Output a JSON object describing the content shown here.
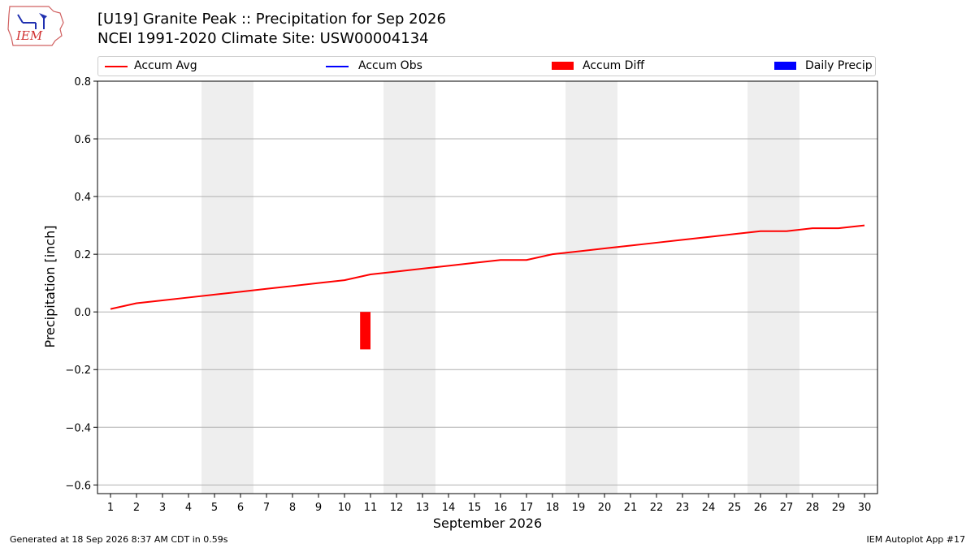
{
  "page": {
    "title_line1": "[U19] Granite Peak :: Precipitation for Sep 2026",
    "title_line2": "NCEI 1991-2020 Climate Site: USW00004134",
    "footer_left": "Generated at 18 Sep 2026 8:37 AM CDT in 0.59s",
    "footer_right": "IEM Autoplot App #17",
    "logo_text": "IEM"
  },
  "legend": {
    "placement": "top",
    "items": [
      {
        "label": "Accum Avg",
        "kind": "line",
        "color": "#ff0000"
      },
      {
        "label": "Accum Obs",
        "kind": "line",
        "color": "#0000ff"
      },
      {
        "label": "Accum Diff",
        "kind": "bar",
        "color": "#ff0000"
      },
      {
        "label": "Daily Precip",
        "kind": "bar",
        "color": "#0000ff"
      }
    ]
  },
  "chart_data": {
    "type": "line",
    "xlabel": "September 2026",
    "ylabel": "Precipitation [inch]",
    "xlim": [
      0.5,
      30.5
    ],
    "ylim": [
      -0.63,
      0.8
    ],
    "x_ticks": [
      1,
      2,
      3,
      4,
      5,
      6,
      7,
      8,
      9,
      10,
      11,
      12,
      13,
      14,
      15,
      16,
      17,
      18,
      19,
      20,
      21,
      22,
      23,
      24,
      25,
      26,
      27,
      28,
      29,
      30
    ],
    "y_ticks": [
      -0.6,
      -0.4,
      -0.2,
      0.0,
      0.2,
      0.4,
      0.6,
      0.8
    ],
    "y_tick_labels": [
      "−0.6",
      "−0.4",
      "−0.2",
      "0.0",
      "0.2",
      "0.4",
      "0.6",
      "0.8"
    ],
    "grid": "horizontal",
    "weekend_shading": [
      [
        4.5,
        6.5
      ],
      [
        11.5,
        13.5
      ],
      [
        18.5,
        20.5
      ],
      [
        25.5,
        27.5
      ]
    ],
    "series": [
      {
        "name": "Accum Avg",
        "type": "line",
        "color": "#ff0000",
        "x": [
          1,
          2,
          3,
          4,
          5,
          6,
          7,
          8,
          9,
          10,
          11,
          12,
          13,
          14,
          15,
          16,
          17,
          18,
          19,
          20,
          21,
          22,
          23,
          24,
          25,
          26,
          27,
          28,
          29,
          30
        ],
        "values": [
          0.01,
          0.03,
          0.04,
          0.05,
          0.06,
          0.07,
          0.08,
          0.09,
          0.1,
          0.11,
          0.13,
          0.14,
          0.15,
          0.16,
          0.17,
          0.18,
          0.18,
          0.2,
          0.21,
          0.22,
          0.23,
          0.24,
          0.25,
          0.26,
          0.27,
          0.28,
          0.28,
          0.29,
          0.29,
          0.3
        ]
      },
      {
        "name": "Accum Diff",
        "type": "bar",
        "color": "#ff0000",
        "x": [
          10.8
        ],
        "values": [
          -0.13
        ]
      }
    ]
  }
}
